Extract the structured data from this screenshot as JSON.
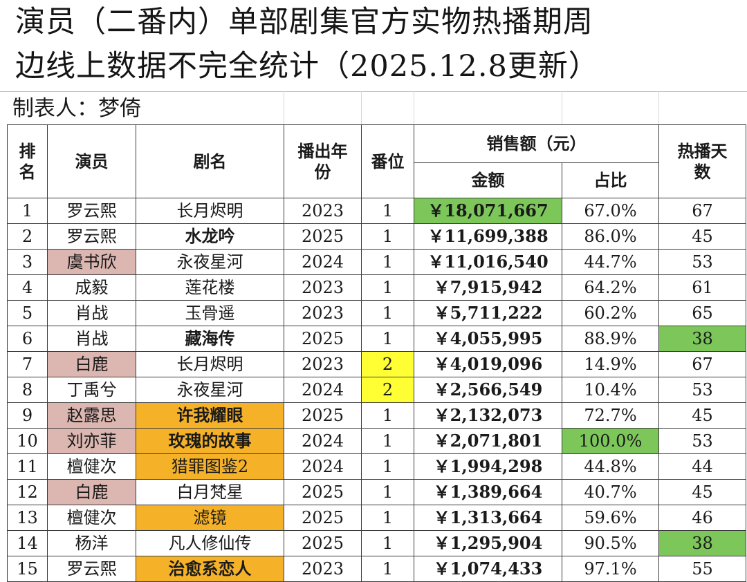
{
  "title": {
    "line1": "演员（二番内）单部剧集官方实物热播期周",
    "line2": "边线上数据不完全统计（2025.12.8更新）"
  },
  "maker": "制表人：梦倚",
  "headers": {
    "rank": "排名",
    "actor": "演员",
    "drama": "剧名",
    "year": "播出年份",
    "billing": "番位",
    "sales": "销售额（元）",
    "amount": "金额",
    "share": "占比",
    "days": "热播天数"
  },
  "highlight_colors": {
    "pink": "#dcb6b0",
    "orange": "#f5b228",
    "green": "#7cc65a",
    "yellow": "#ffff33"
  },
  "rows": [
    {
      "rank": "1",
      "actor": "罗云熙",
      "drama": "长月烬明",
      "year": "2023",
      "billing": "1",
      "amount": "￥18,071,667",
      "share": "67.0%",
      "days": "67"
    },
    {
      "rank": "2",
      "actor": "罗云熙",
      "drama": "水龙吟",
      "year": "2025",
      "billing": "1",
      "amount": "￥11,699,388",
      "share": "86.0%",
      "days": "45"
    },
    {
      "rank": "3",
      "actor": "虞书欣",
      "drama": "永夜星河",
      "year": "2024",
      "billing": "1",
      "amount": "￥11,016,540",
      "share": "44.7%",
      "days": "53"
    },
    {
      "rank": "4",
      "actor": "成毅",
      "drama": "莲花楼",
      "year": "2023",
      "billing": "1",
      "amount": "￥7,915,942",
      "share": "64.2%",
      "days": "61"
    },
    {
      "rank": "5",
      "actor": "肖战",
      "drama": "玉骨遥",
      "year": "2023",
      "billing": "1",
      "amount": "￥5,711,222",
      "share": "60.2%",
      "days": "65"
    },
    {
      "rank": "6",
      "actor": "肖战",
      "drama": "藏海传",
      "year": "2025",
      "billing": "1",
      "amount": "￥4,055,995",
      "share": "88.9%",
      "days": "38"
    },
    {
      "rank": "7",
      "actor": "白鹿",
      "drama": "长月烬明",
      "year": "2023",
      "billing": "2",
      "amount": "￥4,019,096",
      "share": "14.9%",
      "days": "67"
    },
    {
      "rank": "8",
      "actor": "丁禹兮",
      "drama": "永夜星河",
      "year": "2024",
      "billing": "2",
      "amount": "￥2,566,549",
      "share": "10.4%",
      "days": "53"
    },
    {
      "rank": "9",
      "actor": "赵露思",
      "drama": "许我耀眼",
      "year": "2025",
      "billing": "1",
      "amount": "￥2,132,073",
      "share": "72.7%",
      "days": "45"
    },
    {
      "rank": "10",
      "actor": "刘亦菲",
      "drama": "玫瑰的故事",
      "year": "2024",
      "billing": "1",
      "amount": "￥2,071,801",
      "share": "100.0%",
      "days": "53"
    },
    {
      "rank": "11",
      "actor": "檀健次",
      "drama": "猎罪图鉴2",
      "year": "2024",
      "billing": "1",
      "amount": "￥1,994,298",
      "share": "44.8%",
      "days": "44"
    },
    {
      "rank": "12",
      "actor": "白鹿",
      "drama": "白月梵星",
      "year": "2025",
      "billing": "1",
      "amount": "￥1,389,664",
      "share": "40.7%",
      "days": "45"
    },
    {
      "rank": "13",
      "actor": "檀健次",
      "drama": "滤镜",
      "year": "2025",
      "billing": "1",
      "amount": "￥1,313,664",
      "share": "59.6%",
      "days": "46"
    },
    {
      "rank": "14",
      "actor": "杨洋",
      "drama": "凡人修仙传",
      "year": "2025",
      "billing": "1",
      "amount": "￥1,295,904",
      "share": "90.5%",
      "days": "38"
    },
    {
      "rank": "15",
      "actor": "罗云熙",
      "drama": "治愈系恋人",
      "year": "2023",
      "billing": "1",
      "amount": "￥1,074,433",
      "share": "97.1%",
      "days": "55"
    }
  ]
}
